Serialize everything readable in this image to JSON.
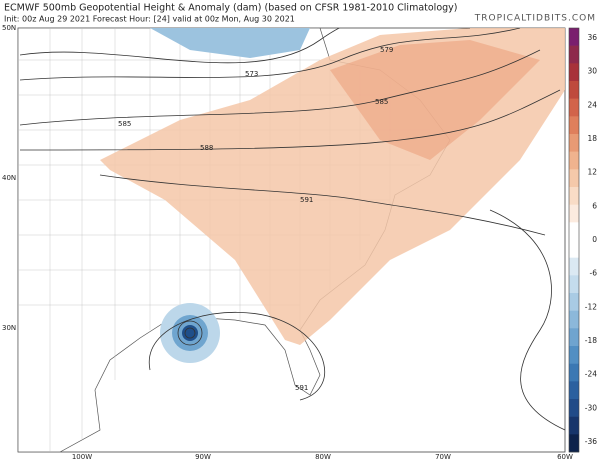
{
  "header": {
    "title": "ECMWF 500mb Geopotential Height & Anomaly (dam) (based on CFSR 1981-2010 Climatology)",
    "subtitle": "Init: 00z Aug 29 2021   Forecast Hour: [24]   valid at 00z Mon, Aug 30 2021",
    "site": "TROPICALTIDBITS.COM"
  },
  "map": {
    "lat_labels": [
      "50N",
      "40N",
      "30N"
    ],
    "lon_labels": [
      "100W",
      "90W",
      "80W",
      "70W",
      "60W"
    ],
    "contour_labels": [
      "573",
      "579",
      "585",
      "585",
      "588",
      "591",
      "591"
    ]
  },
  "colorbar": {
    "labels": [
      36,
      30,
      24,
      18,
      12,
      6,
      0,
      -6,
      -12,
      -18,
      -24,
      -30,
      -36
    ]
  }
}
